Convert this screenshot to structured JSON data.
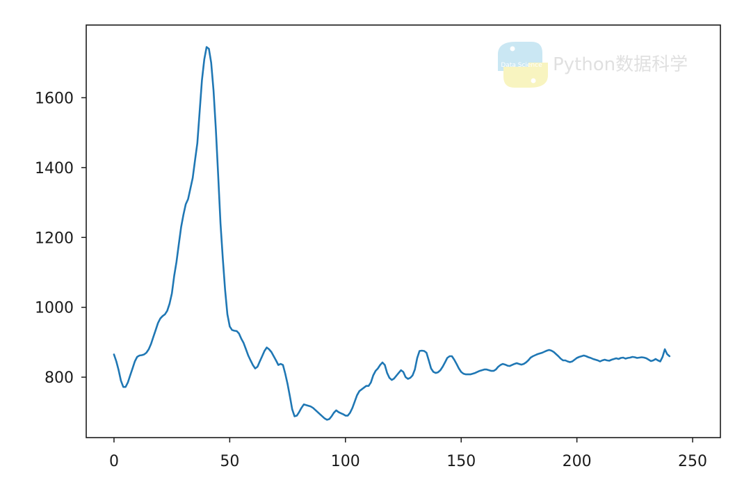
{
  "watermark": {
    "text": "Python数据科学",
    "logo_text": "Data Science"
  },
  "chart_data": {
    "type": "line",
    "title": "",
    "xlabel": "",
    "ylabel": "",
    "xlim": [
      -12,
      262
    ],
    "ylim": [
      627,
      1808
    ],
    "xticks": [
      0,
      50,
      100,
      150,
      200,
      250
    ],
    "yticks": [
      800,
      1000,
      1200,
      1400,
      1600
    ],
    "grid": false,
    "color": "#1f77b4",
    "series": [
      {
        "points": [
          [
            0,
            865
          ],
          [
            1,
            845
          ],
          [
            2,
            820
          ],
          [
            3,
            790
          ],
          [
            4,
            772
          ],
          [
            5,
            772
          ],
          [
            6,
            785
          ],
          [
            7,
            805
          ],
          [
            8,
            825
          ],
          [
            9,
            845
          ],
          [
            10,
            858
          ],
          [
            11,
            862
          ],
          [
            12,
            863
          ],
          [
            13,
            865
          ],
          [
            14,
            870
          ],
          [
            15,
            880
          ],
          [
            16,
            895
          ],
          [
            17,
            915
          ],
          [
            18,
            935
          ],
          [
            19,
            955
          ],
          [
            20,
            968
          ],
          [
            21,
            975
          ],
          [
            22,
            980
          ],
          [
            23,
            990
          ],
          [
            24,
            1010
          ],
          [
            25,
            1040
          ],
          [
            26,
            1090
          ],
          [
            27,
            1130
          ],
          [
            28,
            1180
          ],
          [
            29,
            1230
          ],
          [
            30,
            1265
          ],
          [
            31,
            1295
          ],
          [
            32,
            1310
          ],
          [
            33,
            1340
          ],
          [
            34,
            1370
          ],
          [
            35,
            1420
          ],
          [
            36,
            1470
          ],
          [
            37,
            1560
          ],
          [
            38,
            1650
          ],
          [
            39,
            1710
          ],
          [
            40,
            1745
          ],
          [
            41,
            1740
          ],
          [
            42,
            1700
          ],
          [
            43,
            1620
          ],
          [
            44,
            1510
          ],
          [
            45,
            1380
          ],
          [
            46,
            1240
          ],
          [
            47,
            1140
          ],
          [
            48,
            1050
          ],
          [
            49,
            980
          ],
          [
            50,
            945
          ],
          [
            51,
            935
          ],
          [
            52,
            933
          ],
          [
            53,
            932
          ],
          [
            54,
            925
          ],
          [
            55,
            910
          ],
          [
            56,
            898
          ],
          [
            57,
            880
          ],
          [
            58,
            862
          ],
          [
            59,
            848
          ],
          [
            60,
            835
          ],
          [
            61,
            825
          ],
          [
            62,
            830
          ],
          [
            63,
            845
          ],
          [
            64,
            860
          ],
          [
            65,
            875
          ],
          [
            66,
            885
          ],
          [
            67,
            880
          ],
          [
            68,
            872
          ],
          [
            69,
            860
          ],
          [
            70,
            848
          ],
          [
            71,
            835
          ],
          [
            72,
            838
          ],
          [
            73,
            835
          ],
          [
            74,
            810
          ],
          [
            75,
            780
          ],
          [
            76,
            745
          ],
          [
            77,
            708
          ],
          [
            78,
            688
          ],
          [
            79,
            690
          ],
          [
            80,
            700
          ],
          [
            81,
            712
          ],
          [
            82,
            722
          ],
          [
            83,
            720
          ],
          [
            84,
            718
          ],
          [
            85,
            716
          ],
          [
            86,
            712
          ],
          [
            87,
            706
          ],
          [
            88,
            700
          ],
          [
            89,
            694
          ],
          [
            90,
            688
          ],
          [
            91,
            682
          ],
          [
            92,
            678
          ],
          [
            93,
            680
          ],
          [
            94,
            688
          ],
          [
            95,
            698
          ],
          [
            96,
            705
          ],
          [
            97,
            700
          ],
          [
            98,
            697
          ],
          [
            99,
            694
          ],
          [
            100,
            690
          ],
          [
            101,
            690
          ],
          [
            102,
            698
          ],
          [
            103,
            712
          ],
          [
            104,
            730
          ],
          [
            105,
            748
          ],
          [
            106,
            760
          ],
          [
            107,
            765
          ],
          [
            108,
            770
          ],
          [
            109,
            775
          ],
          [
            110,
            775
          ],
          [
            111,
            785
          ],
          [
            112,
            805
          ],
          [
            113,
            818
          ],
          [
            114,
            825
          ],
          [
            115,
            835
          ],
          [
            116,
            842
          ],
          [
            117,
            835
          ],
          [
            118,
            812
          ],
          [
            119,
            798
          ],
          [
            120,
            792
          ],
          [
            121,
            796
          ],
          [
            122,
            804
          ],
          [
            123,
            812
          ],
          [
            124,
            820
          ],
          [
            125,
            815
          ],
          [
            126,
            800
          ],
          [
            127,
            795
          ],
          [
            128,
            798
          ],
          [
            129,
            805
          ],
          [
            130,
            822
          ],
          [
            131,
            855
          ],
          [
            132,
            875
          ],
          [
            133,
            876
          ],
          [
            134,
            875
          ],
          [
            135,
            870
          ],
          [
            136,
            848
          ],
          [
            137,
            825
          ],
          [
            138,
            815
          ],
          [
            139,
            812
          ],
          [
            140,
            814
          ],
          [
            141,
            820
          ],
          [
            142,
            830
          ],
          [
            143,
            842
          ],
          [
            144,
            855
          ],
          [
            145,
            860
          ],
          [
            146,
            860
          ],
          [
            147,
            850
          ],
          [
            148,
            838
          ],
          [
            149,
            825
          ],
          [
            150,
            815
          ],
          [
            151,
            810
          ],
          [
            152,
            808
          ],
          [
            153,
            808
          ],
          [
            154,
            808
          ],
          [
            155,
            810
          ],
          [
            156,
            812
          ],
          [
            157,
            815
          ],
          [
            158,
            818
          ],
          [
            159,
            820
          ],
          [
            160,
            822
          ],
          [
            161,
            822
          ],
          [
            162,
            820
          ],
          [
            163,
            818
          ],
          [
            164,
            818
          ],
          [
            165,
            822
          ],
          [
            166,
            830
          ],
          [
            167,
            835
          ],
          [
            168,
            838
          ],
          [
            169,
            836
          ],
          [
            170,
            833
          ],
          [
            171,
            832
          ],
          [
            172,
            835
          ],
          [
            173,
            838
          ],
          [
            174,
            840
          ],
          [
            175,
            838
          ],
          [
            176,
            836
          ],
          [
            177,
            838
          ],
          [
            178,
            842
          ],
          [
            179,
            848
          ],
          [
            180,
            856
          ],
          [
            181,
            860
          ],
          [
            182,
            863
          ],
          [
            183,
            866
          ],
          [
            184,
            868
          ],
          [
            185,
            870
          ],
          [
            186,
            873
          ],
          [
            187,
            876
          ],
          [
            188,
            878
          ],
          [
            189,
            876
          ],
          [
            190,
            872
          ],
          [
            191,
            866
          ],
          [
            192,
            860
          ],
          [
            193,
            853
          ],
          [
            194,
            848
          ],
          [
            195,
            848
          ],
          [
            196,
            845
          ],
          [
            197,
            843
          ],
          [
            198,
            845
          ],
          [
            199,
            850
          ],
          [
            200,
            855
          ],
          [
            201,
            858
          ],
          [
            202,
            860
          ],
          [
            203,
            862
          ],
          [
            204,
            860
          ],
          [
            205,
            857
          ],
          [
            206,
            855
          ],
          [
            207,
            852
          ],
          [
            208,
            850
          ],
          [
            209,
            848
          ],
          [
            210,
            845
          ],
          [
            211,
            848
          ],
          [
            212,
            850
          ],
          [
            213,
            848
          ],
          [
            214,
            847
          ],
          [
            215,
            850
          ],
          [
            216,
            852
          ],
          [
            217,
            854
          ],
          [
            218,
            852
          ],
          [
            219,
            855
          ],
          [
            220,
            856
          ],
          [
            221,
            853
          ],
          [
            222,
            855
          ],
          [
            223,
            856
          ],
          [
            224,
            858
          ],
          [
            225,
            857
          ],
          [
            226,
            855
          ],
          [
            227,
            856
          ],
          [
            228,
            857
          ],
          [
            229,
            856
          ],
          [
            230,
            854
          ],
          [
            231,
            850
          ],
          [
            232,
            846
          ],
          [
            233,
            848
          ],
          [
            234,
            852
          ],
          [
            235,
            848
          ],
          [
            236,
            845
          ],
          [
            237,
            858
          ],
          [
            238,
            880
          ],
          [
            239,
            866
          ],
          [
            240,
            860
          ]
        ]
      }
    ]
  }
}
